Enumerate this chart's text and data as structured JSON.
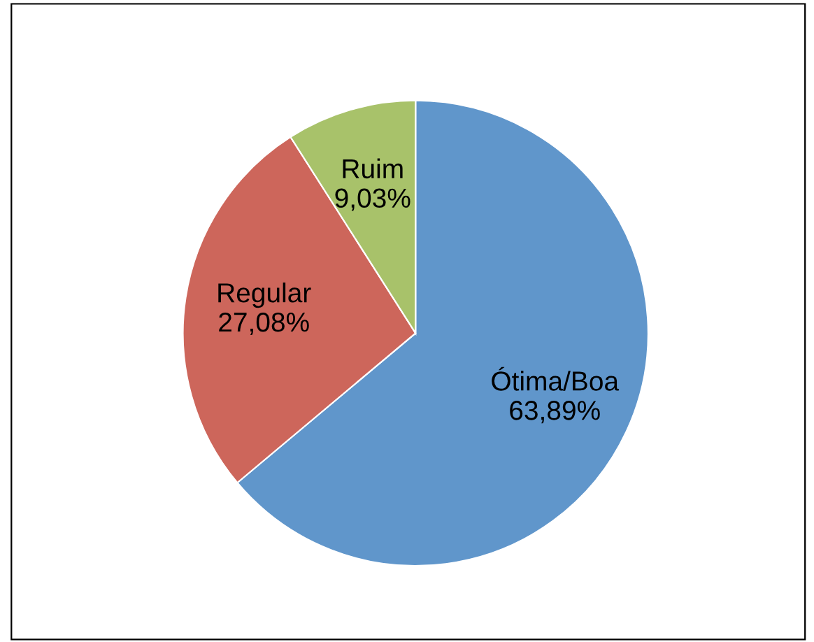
{
  "chart_data": {
    "type": "pie",
    "categories": [
      "Ótima/Boa",
      "Regular",
      "Ruim"
    ],
    "values": [
      63.89,
      27.08,
      9.03
    ],
    "value_labels": [
      "63,89%",
      "27,08%",
      "9,03%"
    ],
    "colors": [
      "#6096cb",
      "#cd665b",
      "#a8c26a"
    ],
    "legend": false
  }
}
